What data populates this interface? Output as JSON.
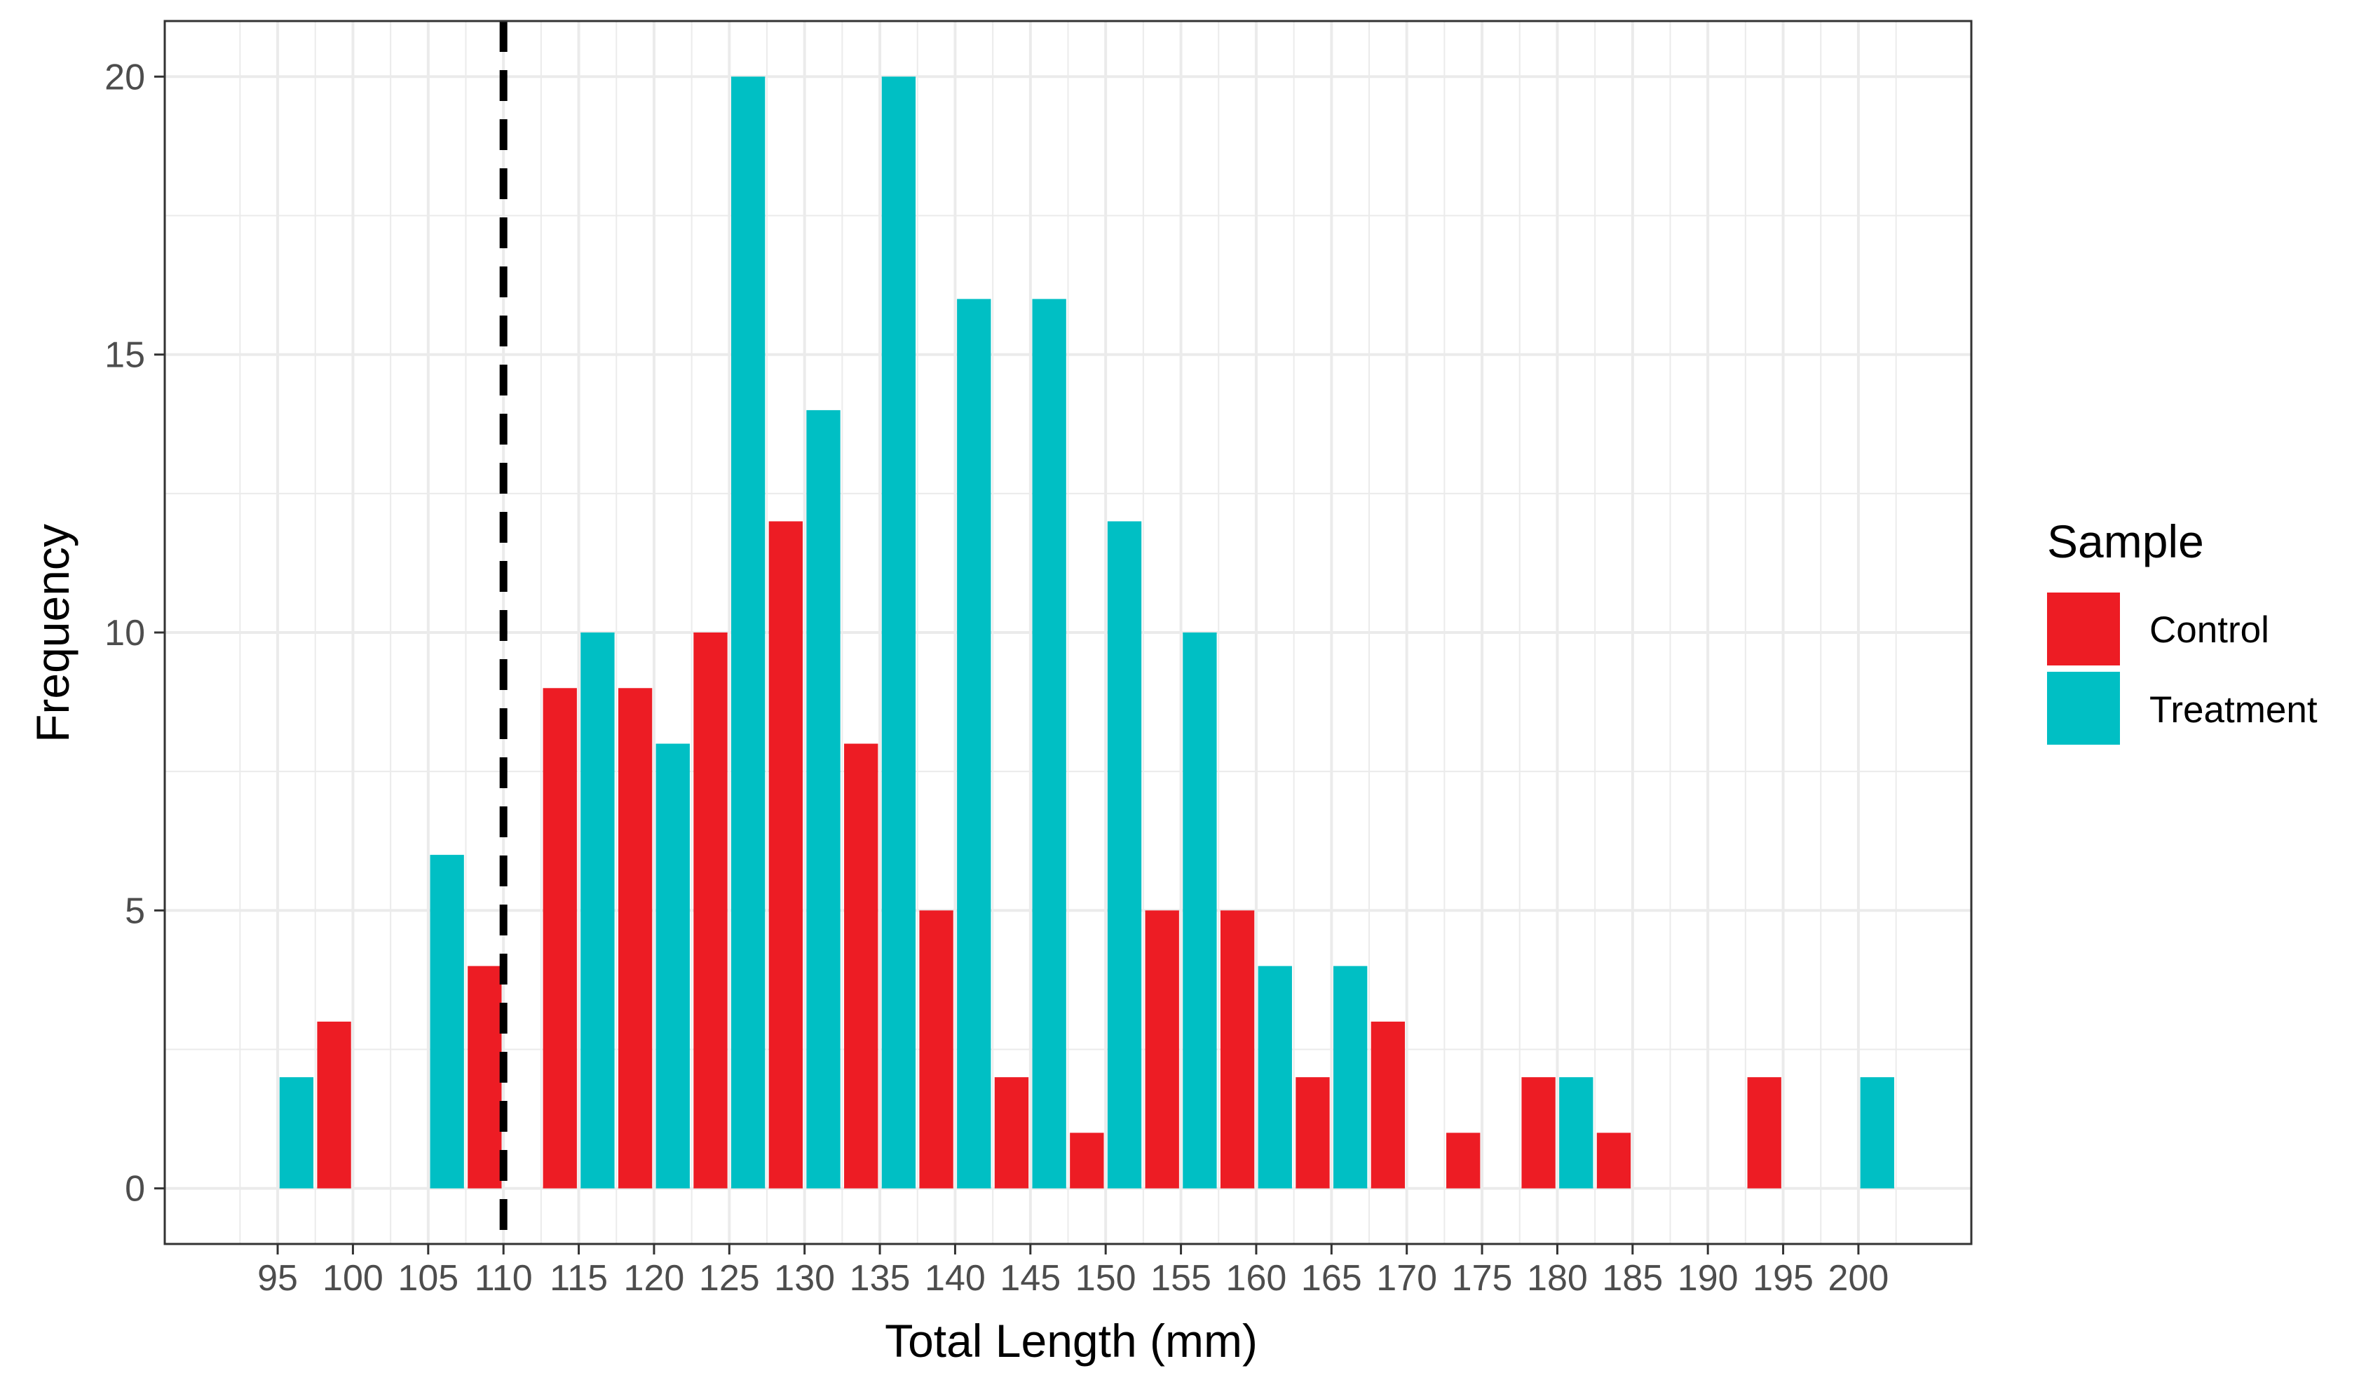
{
  "chart_data": {
    "type": "bar",
    "title": "",
    "xlabel": "Total Length (mm)",
    "ylabel": "Frequency",
    "xlim": [
      87.5,
      207.5
    ],
    "ylim": [
      -1,
      21
    ],
    "grid": true,
    "x_bins": [
      95,
      100,
      105,
      110,
      115,
      120,
      125,
      130,
      135,
      140,
      145,
      150,
      155,
      160,
      165,
      170,
      175,
      180,
      185,
      190,
      195,
      200
    ],
    "x_tick_labels": [
      "95",
      "100",
      "105",
      "110",
      "115",
      "120",
      "125",
      "130",
      "135",
      "140",
      "145",
      "150",
      "155",
      "160",
      "165",
      "170",
      "175",
      "180",
      "185",
      "190",
      "195",
      "200"
    ],
    "y_ticks": [
      0,
      5,
      10,
      15,
      20
    ],
    "y_tick_labels": [
      "0",
      "5",
      "10",
      "15",
      "20"
    ],
    "series": [
      {
        "name": "Control",
        "color": "#ED1C24",
        "values": [
          0,
          3,
          0,
          4,
          9,
          9,
          10,
          12,
          8,
          5,
          2,
          1,
          5,
          5,
          2,
          3,
          1,
          2,
          1,
          0,
          2,
          0
        ]
      },
      {
        "name": "Treatment",
        "color": "#00BFC4",
        "values": [
          2,
          0,
          6,
          0,
          10,
          8,
          20,
          14,
          20,
          16,
          16,
          12,
          10,
          4,
          4,
          0,
          0,
          2,
          0,
          0,
          0,
          2
        ]
      }
    ],
    "reference_line": {
      "x": 110,
      "style": "dashed",
      "color": "#000000"
    },
    "legend": {
      "title": "Sample",
      "position": "right",
      "entries": [
        "Control",
        "Treatment"
      ]
    }
  }
}
